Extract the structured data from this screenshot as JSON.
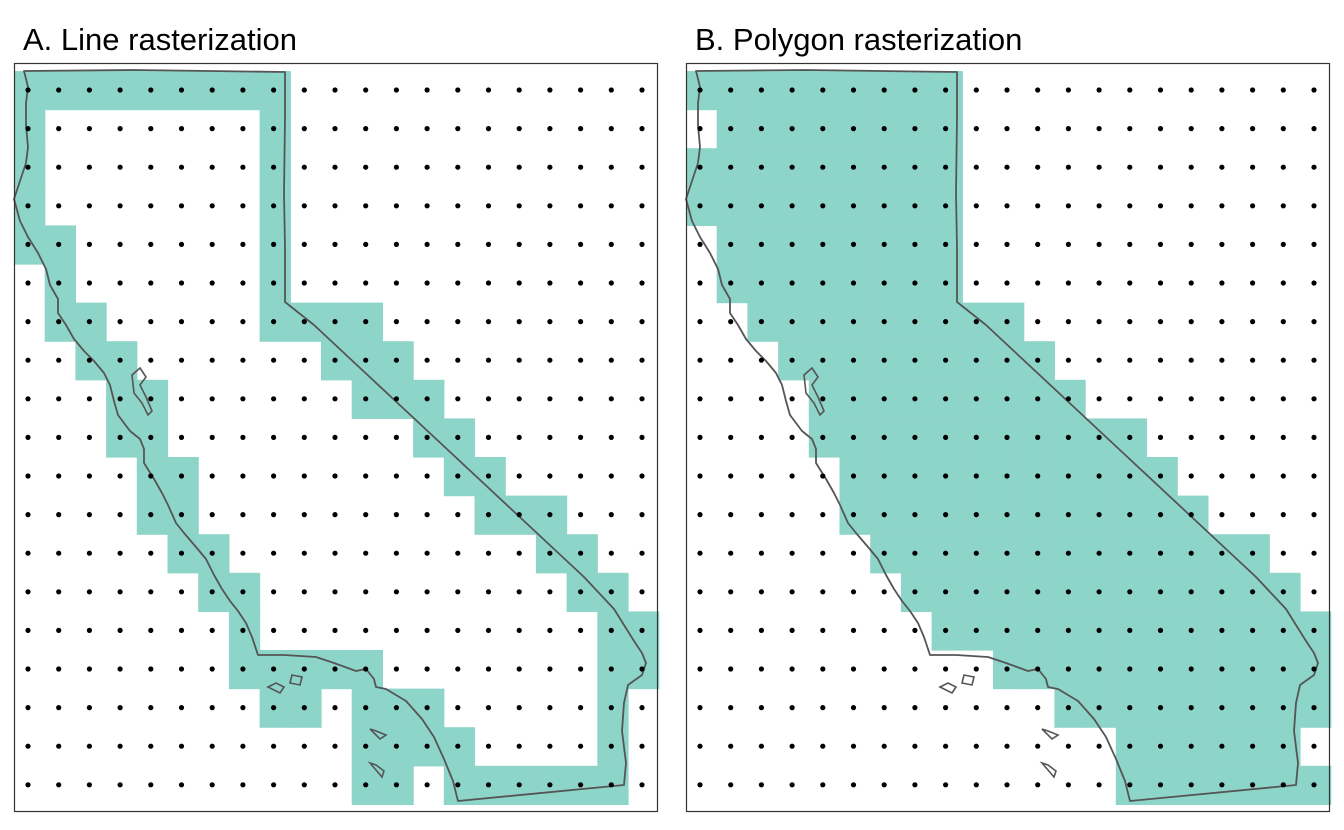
{
  "panels": [
    {
      "title": "A. Line rasterization",
      "mode": "line",
      "filled_cells": [
        [
          0,
          0
        ],
        [
          1,
          0
        ],
        [
          2,
          0
        ],
        [
          3,
          0
        ],
        [
          4,
          0
        ],
        [
          5,
          0
        ],
        [
          6,
          0
        ],
        [
          7,
          0
        ],
        [
          8,
          0
        ],
        [
          0,
          1
        ],
        [
          8,
          1
        ],
        [
          0,
          2
        ],
        [
          8,
          2
        ],
        [
          0,
          3
        ],
        [
          8,
          3
        ],
        [
          0,
          4
        ],
        [
          1,
          4
        ],
        [
          8,
          4
        ],
        [
          1,
          5
        ],
        [
          8,
          5
        ],
        [
          1,
          6
        ],
        [
          2,
          6
        ],
        [
          8,
          6
        ],
        [
          9,
          6
        ],
        [
          10,
          6
        ],
        [
          11,
          6
        ],
        [
          2,
          7
        ],
        [
          3,
          7
        ],
        [
          10,
          7
        ],
        [
          11,
          7
        ],
        [
          12,
          7
        ],
        [
          3,
          8
        ],
        [
          4,
          8
        ],
        [
          11,
          8
        ],
        [
          12,
          8
        ],
        [
          13,
          8
        ],
        [
          3,
          9
        ],
        [
          4,
          9
        ],
        [
          13,
          9
        ],
        [
          14,
          9
        ],
        [
          4,
          10
        ],
        [
          5,
          10
        ],
        [
          14,
          10
        ],
        [
          15,
          10
        ],
        [
          4,
          11
        ],
        [
          5,
          11
        ],
        [
          15,
          11
        ],
        [
          16,
          11
        ],
        [
          17,
          11
        ],
        [
          5,
          12
        ],
        [
          6,
          12
        ],
        [
          17,
          12
        ],
        [
          18,
          12
        ],
        [
          6,
          13
        ],
        [
          7,
          13
        ],
        [
          18,
          13
        ],
        [
          19,
          13
        ],
        [
          7,
          14
        ],
        [
          19,
          14
        ],
        [
          20,
          14
        ],
        [
          7,
          15
        ],
        [
          8,
          15
        ],
        [
          9,
          15
        ],
        [
          10,
          15
        ],
        [
          11,
          15
        ],
        [
          19,
          15
        ],
        [
          20,
          15
        ],
        [
          8,
          16
        ],
        [
          9,
          16
        ],
        [
          11,
          16
        ],
        [
          12,
          16
        ],
        [
          13,
          16
        ],
        [
          19,
          16
        ],
        [
          11,
          17
        ],
        [
          12,
          17
        ],
        [
          13,
          17
        ],
        [
          14,
          17
        ],
        [
          19,
          17
        ],
        [
          11,
          18
        ],
        [
          12,
          18
        ],
        [
          14,
          18
        ],
        [
          15,
          18
        ],
        [
          16,
          18
        ],
        [
          17,
          18
        ],
        [
          18,
          18
        ],
        [
          19,
          18
        ]
      ]
    },
    {
      "title": "B. Polygon rasterization",
      "mode": "polygon",
      "filled_cells": [
        [
          0,
          0
        ],
        [
          1,
          0
        ],
        [
          2,
          0
        ],
        [
          3,
          0
        ],
        [
          4,
          0
        ],
        [
          5,
          0
        ],
        [
          6,
          0
        ],
        [
          7,
          0
        ],
        [
          8,
          0
        ],
        [
          1,
          1
        ],
        [
          2,
          1
        ],
        [
          3,
          1
        ],
        [
          4,
          1
        ],
        [
          5,
          1
        ],
        [
          6,
          1
        ],
        [
          7,
          1
        ],
        [
          8,
          1
        ],
        [
          0,
          2
        ],
        [
          1,
          2
        ],
        [
          2,
          2
        ],
        [
          3,
          2
        ],
        [
          4,
          2
        ],
        [
          5,
          2
        ],
        [
          6,
          2
        ],
        [
          7,
          2
        ],
        [
          8,
          2
        ],
        [
          0,
          3
        ],
        [
          1,
          3
        ],
        [
          2,
          3
        ],
        [
          3,
          3
        ],
        [
          4,
          3
        ],
        [
          5,
          3
        ],
        [
          6,
          3
        ],
        [
          7,
          3
        ],
        [
          8,
          3
        ],
        [
          1,
          4
        ],
        [
          2,
          4
        ],
        [
          3,
          4
        ],
        [
          4,
          4
        ],
        [
          5,
          4
        ],
        [
          6,
          4
        ],
        [
          7,
          4
        ],
        [
          8,
          4
        ],
        [
          1,
          5
        ],
        [
          2,
          5
        ],
        [
          3,
          5
        ],
        [
          4,
          5
        ],
        [
          5,
          5
        ],
        [
          6,
          5
        ],
        [
          7,
          5
        ],
        [
          8,
          5
        ],
        [
          2,
          6
        ],
        [
          3,
          6
        ],
        [
          4,
          6
        ],
        [
          5,
          6
        ],
        [
          6,
          6
        ],
        [
          7,
          6
        ],
        [
          8,
          6
        ],
        [
          9,
          6
        ],
        [
          10,
          6
        ],
        [
          3,
          7
        ],
        [
          4,
          7
        ],
        [
          5,
          7
        ],
        [
          6,
          7
        ],
        [
          7,
          7
        ],
        [
          8,
          7
        ],
        [
          9,
          7
        ],
        [
          10,
          7
        ],
        [
          11,
          7
        ],
        [
          4,
          8
        ],
        [
          5,
          8
        ],
        [
          6,
          8
        ],
        [
          7,
          8
        ],
        [
          8,
          8
        ],
        [
          9,
          8
        ],
        [
          10,
          8
        ],
        [
          11,
          8
        ],
        [
          12,
          8
        ],
        [
          4,
          9
        ],
        [
          5,
          9
        ],
        [
          6,
          9
        ],
        [
          7,
          9
        ],
        [
          8,
          9
        ],
        [
          9,
          9
        ],
        [
          10,
          9
        ],
        [
          11,
          9
        ],
        [
          12,
          9
        ],
        [
          13,
          9
        ],
        [
          14,
          9
        ],
        [
          5,
          10
        ],
        [
          6,
          10
        ],
        [
          7,
          10
        ],
        [
          8,
          10
        ],
        [
          9,
          10
        ],
        [
          10,
          10
        ],
        [
          11,
          10
        ],
        [
          12,
          10
        ],
        [
          13,
          10
        ],
        [
          14,
          10
        ],
        [
          15,
          10
        ],
        [
          5,
          11
        ],
        [
          6,
          11
        ],
        [
          7,
          11
        ],
        [
          8,
          11
        ],
        [
          9,
          11
        ],
        [
          10,
          11
        ],
        [
          11,
          11
        ],
        [
          12,
          11
        ],
        [
          13,
          11
        ],
        [
          14,
          11
        ],
        [
          15,
          11
        ],
        [
          16,
          11
        ],
        [
          6,
          12
        ],
        [
          7,
          12
        ],
        [
          8,
          12
        ],
        [
          9,
          12
        ],
        [
          10,
          12
        ],
        [
          11,
          12
        ],
        [
          12,
          12
        ],
        [
          13,
          12
        ],
        [
          14,
          12
        ],
        [
          15,
          12
        ],
        [
          16,
          12
        ],
        [
          17,
          12
        ],
        [
          18,
          12
        ],
        [
          7,
          13
        ],
        [
          8,
          13
        ],
        [
          9,
          13
        ],
        [
          10,
          13
        ],
        [
          11,
          13
        ],
        [
          12,
          13
        ],
        [
          13,
          13
        ],
        [
          14,
          13
        ],
        [
          15,
          13
        ],
        [
          16,
          13
        ],
        [
          17,
          13
        ],
        [
          18,
          13
        ],
        [
          19,
          13
        ],
        [
          8,
          14
        ],
        [
          9,
          14
        ],
        [
          10,
          14
        ],
        [
          11,
          14
        ],
        [
          12,
          14
        ],
        [
          13,
          14
        ],
        [
          14,
          14
        ],
        [
          15,
          14
        ],
        [
          16,
          14
        ],
        [
          17,
          14
        ],
        [
          18,
          14
        ],
        [
          19,
          14
        ],
        [
          20,
          14
        ],
        [
          10,
          15
        ],
        [
          11,
          15
        ],
        [
          12,
          15
        ],
        [
          13,
          15
        ],
        [
          14,
          15
        ],
        [
          15,
          15
        ],
        [
          16,
          15
        ],
        [
          17,
          15
        ],
        [
          18,
          15
        ],
        [
          19,
          15
        ],
        [
          20,
          15
        ],
        [
          12,
          16
        ],
        [
          13,
          16
        ],
        [
          14,
          16
        ],
        [
          15,
          16
        ],
        [
          16,
          16
        ],
        [
          17,
          16
        ],
        [
          18,
          16
        ],
        [
          19,
          16
        ],
        [
          20,
          16
        ],
        [
          14,
          17
        ],
        [
          15,
          17
        ],
        [
          16,
          17
        ],
        [
          17,
          17
        ],
        [
          18,
          17
        ],
        [
          19,
          17
        ],
        [
          14,
          18
        ],
        [
          15,
          18
        ],
        [
          16,
          18
        ],
        [
          17,
          18
        ],
        [
          18,
          18
        ],
        [
          19,
          18
        ],
        [
          20,
          18
        ]
      ]
    }
  ],
  "grid": {
    "columns": 21,
    "rows": 19
  },
  "colors": {
    "cell_fill": "#8ed5c9",
    "outline": "#555555",
    "frame": "#333333",
    "dot": "#000000"
  }
}
